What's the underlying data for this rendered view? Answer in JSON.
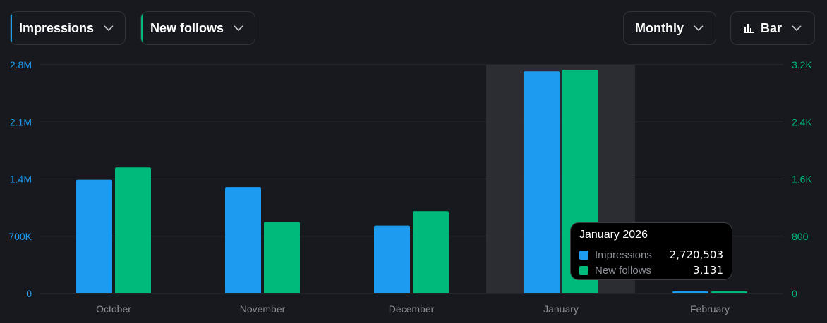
{
  "controls": {
    "metric1": {
      "label": "Impressions",
      "color": "#1d9bf0"
    },
    "metric2": {
      "label": "New follows",
      "color": "#00ba7c"
    },
    "period": {
      "label": "Monthly"
    },
    "chart_type": {
      "label": "Bar",
      "icon": "bar-chart-icon"
    }
  },
  "chart_data": {
    "type": "bar",
    "categories": [
      "October",
      "November",
      "December",
      "January",
      "February"
    ],
    "series": [
      {
        "name": "Impressions",
        "axis": "left",
        "color": "#1d9bf0",
        "values": [
          1390000,
          1300000,
          830000,
          2720503,
          20000
        ]
      },
      {
        "name": "New follows",
        "axis": "right",
        "color": "#00ba7c",
        "values": [
          1760,
          1000,
          1150,
          3131,
          25
        ]
      }
    ],
    "left_axis": {
      "ylim": [
        0,
        2800000
      ],
      "ticks": [
        0,
        700000,
        1400000,
        2100000,
        2800000
      ],
      "tick_labels": [
        "0",
        "700K",
        "1.4M",
        "2.1M",
        "2.8M"
      ],
      "color": "#1d9bf0"
    },
    "right_axis": {
      "ylim": [
        0,
        3200
      ],
      "ticks": [
        0,
        800,
        1600,
        2400,
        3200
      ],
      "tick_labels": [
        "0",
        "800",
        "1.6K",
        "2.4K",
        "3.2K"
      ],
      "color": "#00ba7c"
    },
    "grid": true,
    "highlighted_category": "January"
  },
  "tooltip": {
    "title": "January 2026",
    "rows": [
      {
        "name": "Impressions",
        "value": "2,720,503",
        "color": "#1d9bf0"
      },
      {
        "name": "New follows",
        "value": "3,131",
        "color": "#00ba7c"
      }
    ]
  }
}
